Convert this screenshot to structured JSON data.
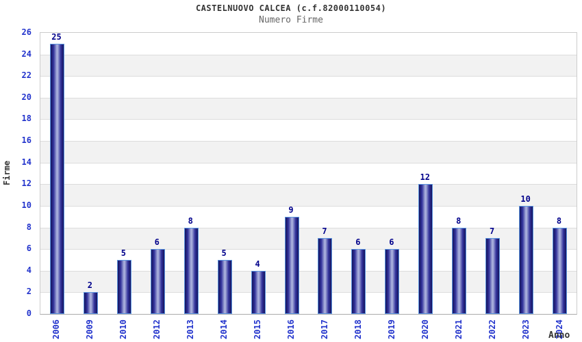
{
  "chart_data": {
    "type": "bar",
    "title": "CASTELNUOVO CALCEA (c.f.82000110054)",
    "subtitle": "Numero Firme",
    "xlabel": "Anno",
    "ylabel": "Firme",
    "categories": [
      "2006",
      "2009",
      "2010",
      "2012",
      "2013",
      "2014",
      "2015",
      "2016",
      "2017",
      "2018",
      "2019",
      "2020",
      "2021",
      "2022",
      "2023",
      "2024"
    ],
    "values": [
      25,
      2,
      5,
      6,
      8,
      5,
      4,
      9,
      7,
      6,
      6,
      12,
      8,
      7,
      10,
      8
    ],
    "ylim": [
      0,
      26
    ],
    "ytick_step": 2,
    "yticks": [
      0,
      2,
      4,
      6,
      8,
      10,
      12,
      14,
      16,
      18,
      20,
      22,
      24,
      26
    ],
    "grid": true,
    "legend": false,
    "colors": {
      "bar_dark": "#14145e",
      "bar_mid": "#32329b",
      "bar_light": "#a2a9d9",
      "bar_border": "#5b95e0",
      "value_label": "#00008b",
      "tick_label": "#2233cc",
      "band_white": "#ffffff",
      "band_gray": "#f2f2f2",
      "grid_line": "#dcdcdc",
      "plot_border": "#cccccc",
      "title_color": "#333333",
      "subtitle_color": "#666666"
    }
  }
}
